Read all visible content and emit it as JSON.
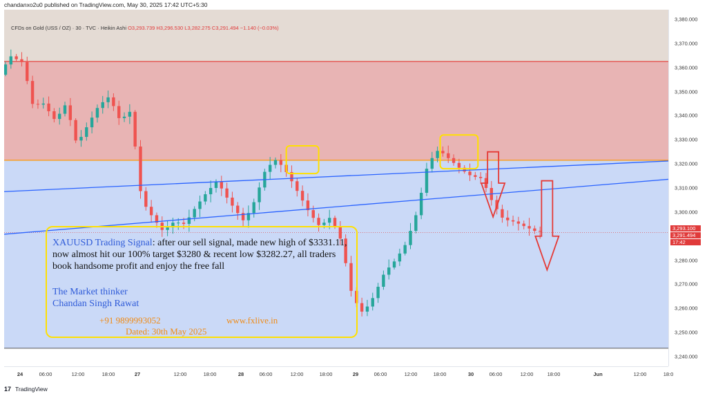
{
  "header": {
    "publish_text": "chandanxo2u0 published on TradingView.com, May 30, 2025 17:42 UTC+5:30"
  },
  "legend": {
    "symbol": "CFDs on Gold (USS / OZ) · 30 · TVC · Heikin Ashi",
    "open": "O3,293.739",
    "high": "H3,296.530",
    "low": "L3,282.275",
    "close": "C3,291.494 −1.140 (−0.03%)"
  },
  "colors": {
    "up": "#26a69a",
    "down": "#ef5350",
    "sell_zone": "#e8b4b4",
    "buy_zone": "#cad9f7",
    "neutral_zone": "#e4dbd4",
    "trendline": "#2962ff",
    "resistance": "#ff9800",
    "top_line": "#e53935",
    "bottom_line": "#555555",
    "highlight": "#ffe000",
    "arrow": "#e53935"
  },
  "chart_data": {
    "type": "candlestick",
    "style": "Heikin Ashi",
    "interval": "30",
    "ylim": [
      3236,
      3384
    ],
    "y_ticks": [
      3240,
      3250,
      3260,
      3270,
      3280,
      3290,
      3300,
      3310,
      3320,
      3330,
      3340,
      3350,
      3360,
      3370,
      3380
    ],
    "x_ticks": [
      "24",
      "06:00",
      "12:00",
      "18:00",
      "27",
      "12:00",
      "18:00",
      "28",
      "06:00",
      "12:00",
      "18:00",
      "29",
      "06:00",
      "12:00",
      "18:00",
      "30",
      "06:00",
      "12:00",
      "18:00",
      "Jun",
      "12:00",
      "18:0"
    ],
    "price_labels": [
      "3,293.100",
      "3,291.494",
      "17:42"
    ],
    "zones": [
      {
        "name": "neutral-zone",
        "from": 3362.5,
        "to": 3384
      },
      {
        "name": "sell-zone",
        "from": 3321.5,
        "to": 3362.5
      },
      {
        "name": "buy-zone",
        "from": 3243.5,
        "to": 3321.5
      }
    ],
    "lines": {
      "top": 3362.5,
      "resistance": 3321.5,
      "bottom": 3243.5
    },
    "trendlines": [
      {
        "name": "upper-trendline",
        "start": [
          0,
          3308.5
        ],
        "end": [
          1,
          3321.2
        ]
      },
      {
        "name": "lower-trendline",
        "start": [
          0,
          3290.8
        ],
        "end": [
          1,
          3313.6
        ]
      }
    ],
    "anchors": [
      [
        0,
        3357
      ],
      [
        1.5,
        3365
      ],
      [
        4,
        3362
      ],
      [
        6,
        3343
      ],
      [
        7.5,
        3346
      ],
      [
        10,
        3338
      ],
      [
        12,
        3345
      ],
      [
        14,
        3328
      ],
      [
        16,
        3336
      ],
      [
        18,
        3344
      ],
      [
        20,
        3348
      ],
      [
        22,
        3338
      ],
      [
        24,
        3342
      ],
      [
        26,
        3305
      ],
      [
        28,
        3298
      ],
      [
        30,
        3292
      ],
      [
        32,
        3296
      ],
      [
        34,
        3295
      ],
      [
        36,
        3302
      ],
      [
        38,
        3308
      ],
      [
        40,
        3313
      ],
      [
        41.5,
        3307
      ],
      [
        43,
        3302
      ],
      [
        45,
        3296
      ],
      [
        47,
        3305
      ],
      [
        49,
        3318
      ],
      [
        51,
        3322
      ],
      [
        53,
        3316
      ],
      [
        55,
        3308
      ],
      [
        57,
        3300
      ],
      [
        59,
        3294
      ],
      [
        61,
        3298
      ],
      [
        63,
        3288
      ],
      [
        65,
        3265
      ],
      [
        67,
        3258
      ],
      [
        69,
        3265
      ],
      [
        71,
        3275
      ],
      [
        73,
        3280
      ],
      [
        75,
        3287
      ],
      [
        77,
        3300
      ],
      [
        79,
        3320
      ],
      [
        81,
        3326
      ],
      [
        83,
        3322
      ],
      [
        85,
        3318
      ],
      [
        87,
        3315
      ],
      [
        89,
        3314
      ],
      [
        91,
        3304
      ],
      [
        93,
        3297
      ],
      [
        95,
        3296
      ],
      [
        97,
        3294
      ],
      [
        99,
        3292
      ]
    ]
  },
  "note": {
    "lead": "XAUUSD Trading Signal",
    "main": ": after our sell signal, made new high of $3331.11, now almost hit our 100% target $3280 & recent low $3282.27, all traders book handsome profit and enjoy the free fall",
    "line1": "The Market thinker",
    "line2": "Chandan Singh Rawat",
    "phone": "+91 9899993052",
    "site": "www.fxlive.in",
    "date": "Dated: 30th May 2025"
  },
  "footer": {
    "brand": "TradingView"
  }
}
